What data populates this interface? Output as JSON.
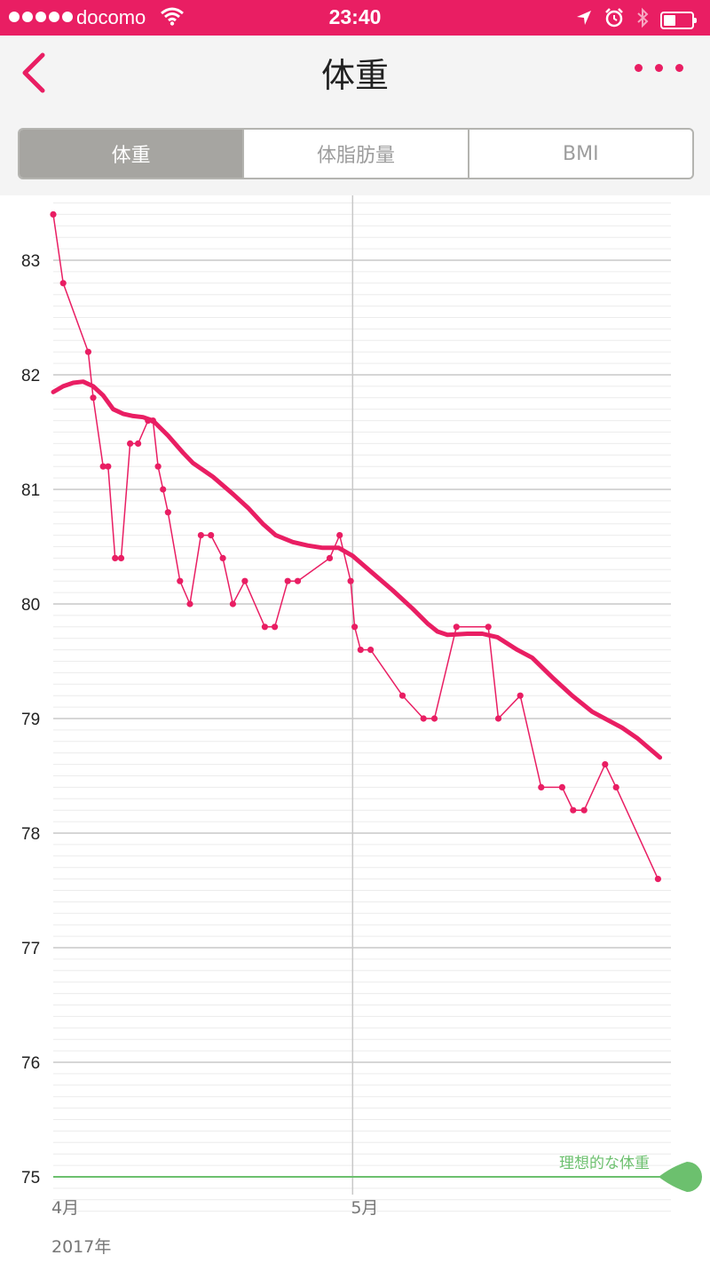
{
  "status_bar": {
    "carrier": "docomo",
    "time": "23:40",
    "icons": [
      "signal-dots",
      "wifi-icon",
      "location-arrow-icon",
      "alarm-icon",
      "bluetooth-icon",
      "battery-icon"
    ]
  },
  "header": {
    "title": "体重",
    "back_icon": "chevron-left-icon",
    "more_icon": "more-dots-icon"
  },
  "tabs": [
    {
      "label": "体重",
      "active": true
    },
    {
      "label": "体脂肪量",
      "active": false
    },
    {
      "label": "BMI",
      "active": false
    }
  ],
  "colors": {
    "accent": "#e91e63",
    "goal": "#6cc06e",
    "tab_active_bg": "#a6a5a1",
    "header_bg": "#f4f4f4"
  },
  "chart_data": {
    "type": "line",
    "y_ticks": [
      "83",
      "82",
      "81",
      "80",
      "79",
      "78",
      "77",
      "76",
      "75"
    ],
    "ylim": [
      74.6,
      83.5
    ],
    "x_labels": [
      {
        "label": "4月",
        "day": 0
      },
      {
        "label": "5月",
        "day": 30
      }
    ],
    "year_label": "2017年",
    "xlim": [
      0,
      61.9
    ],
    "goal": {
      "value": 75,
      "label": "理想的な体重"
    },
    "series": [
      {
        "kind": "measured",
        "points": [
          [
            0,
            83.4
          ],
          [
            1,
            82.8
          ],
          [
            3.5,
            82.2
          ],
          [
            4,
            81.8
          ],
          [
            5,
            81.2
          ],
          [
            5.5,
            81.2
          ],
          [
            6.2,
            80.4
          ],
          [
            6.8,
            80.4
          ],
          [
            7.7,
            81.4
          ],
          [
            8.5,
            81.4
          ],
          [
            9.5,
            81.6
          ],
          [
            10,
            81.6
          ],
          [
            10.5,
            81.2
          ],
          [
            11,
            81.0
          ],
          [
            11.5,
            80.8
          ],
          [
            12.7,
            80.2
          ],
          [
            13.7,
            80.0
          ],
          [
            14.8,
            80.6
          ],
          [
            15.8,
            80.6
          ],
          [
            17,
            80.4
          ],
          [
            18,
            80.0
          ],
          [
            19.2,
            80.2
          ],
          [
            21.2,
            79.8
          ],
          [
            22.2,
            79.8
          ],
          [
            23.5,
            80.2
          ],
          [
            24.5,
            80.2
          ],
          [
            27.7,
            80.4
          ],
          [
            28.7,
            80.6
          ],
          [
            29.8,
            80.2
          ],
          [
            30.2,
            79.8
          ],
          [
            30.8,
            79.6
          ],
          [
            31.8,
            79.6
          ],
          [
            35,
            79.2
          ],
          [
            37.1,
            79.0
          ],
          [
            38.2,
            79.0
          ],
          [
            40.4,
            79.8
          ],
          [
            43.6,
            79.8
          ],
          [
            44.6,
            79.0
          ],
          [
            46.8,
            79.2
          ],
          [
            48.9,
            78.4
          ],
          [
            51,
            78.4
          ],
          [
            52.1,
            78.2
          ],
          [
            53.2,
            78.2
          ],
          [
            55.3,
            78.6
          ],
          [
            56.4,
            78.4
          ],
          [
            60.6,
            77.6
          ]
        ]
      },
      {
        "kind": "trend",
        "points": [
          [
            0,
            81.85
          ],
          [
            1,
            81.9
          ],
          [
            2,
            81.93
          ],
          [
            3,
            81.94
          ],
          [
            4,
            81.9
          ],
          [
            5,
            81.82
          ],
          [
            6,
            81.7
          ],
          [
            7,
            81.66
          ],
          [
            8,
            81.64
          ],
          [
            9,
            81.63
          ],
          [
            10,
            81.6
          ],
          [
            11.5,
            81.47
          ],
          [
            13,
            81.32
          ],
          [
            14,
            81.23
          ],
          [
            16,
            81.11
          ],
          [
            18,
            80.96
          ],
          [
            19.5,
            80.84
          ],
          [
            21,
            80.7
          ],
          [
            22.3,
            80.6
          ],
          [
            24,
            80.54
          ],
          [
            25.5,
            80.51
          ],
          [
            27,
            80.49
          ],
          [
            28.6,
            80.49
          ],
          [
            30,
            80.42
          ],
          [
            32,
            80.27
          ],
          [
            34,
            80.12
          ],
          [
            36,
            79.96
          ],
          [
            37.5,
            79.83
          ],
          [
            38.5,
            79.76
          ],
          [
            39.5,
            79.73
          ],
          [
            41.5,
            79.74
          ],
          [
            43,
            79.74
          ],
          [
            44.5,
            79.71
          ],
          [
            46.5,
            79.6
          ],
          [
            48,
            79.53
          ],
          [
            50,
            79.36
          ],
          [
            52,
            79.2
          ],
          [
            54,
            79.06
          ],
          [
            55.5,
            78.99
          ],
          [
            57,
            78.92
          ],
          [
            58.5,
            78.83
          ],
          [
            60.8,
            78.66
          ]
        ]
      }
    ]
  }
}
